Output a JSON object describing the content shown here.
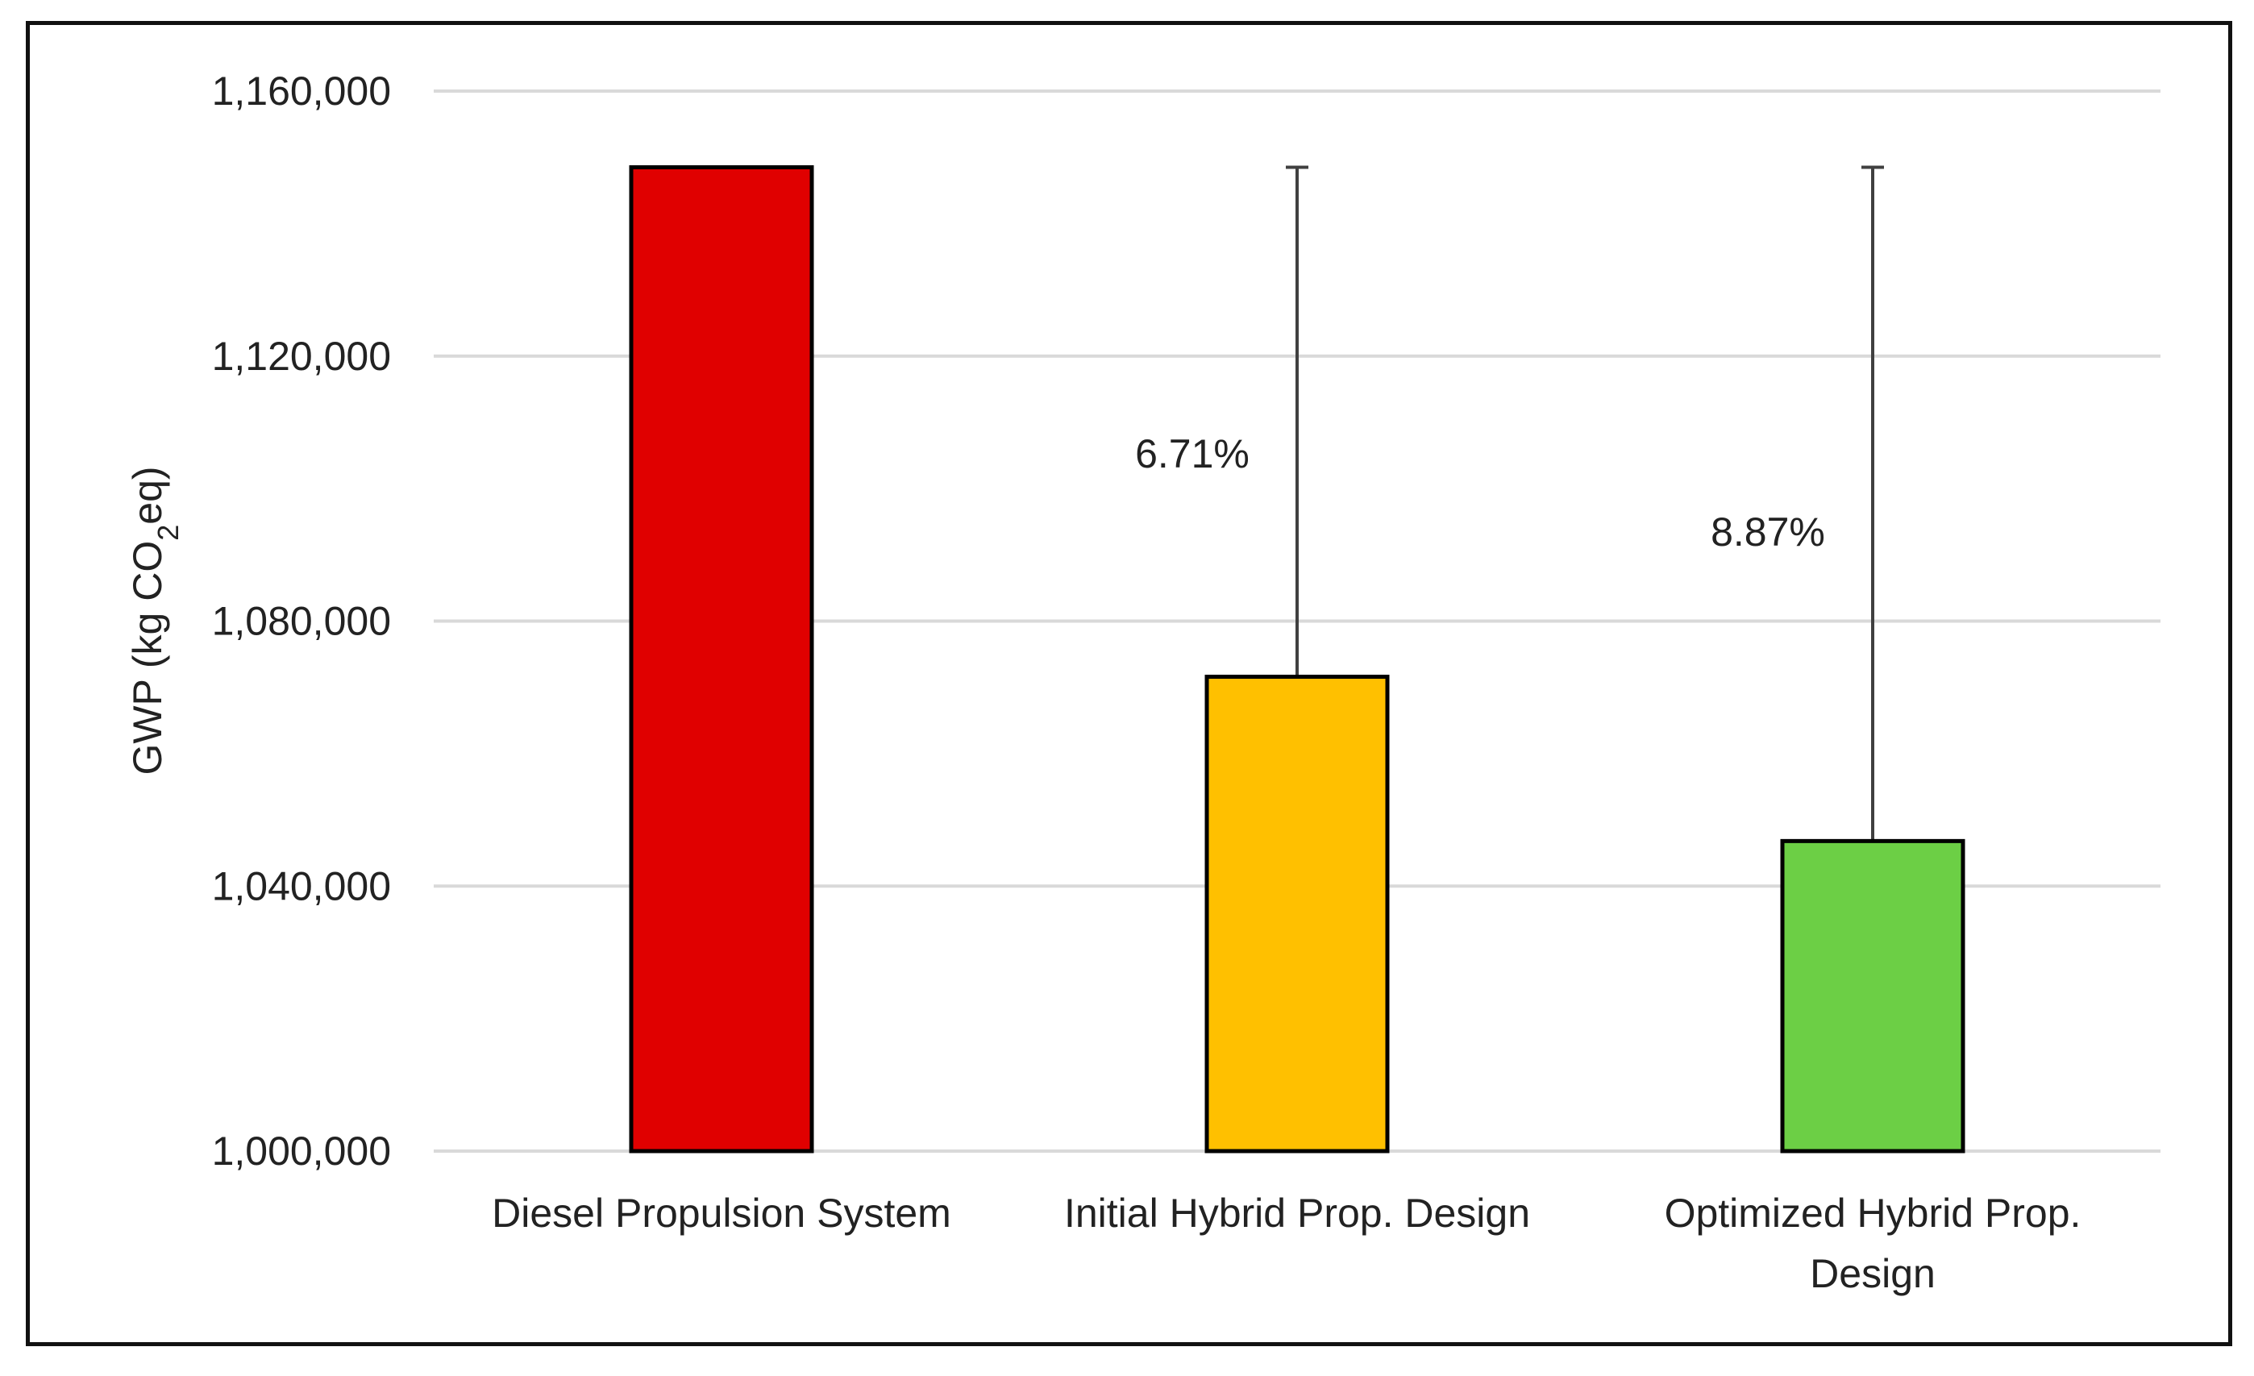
{
  "chart_data": {
    "type": "bar",
    "title": "",
    "xlabel": "",
    "ylabel": "GWP (kg CO2eq)",
    "ylabel_parts": {
      "pre": "GWP (kg CO",
      "sub": "2",
      "post": "eq)"
    },
    "ylim": [
      1000000,
      1160000
    ],
    "yticks": [
      1000000,
      1040000,
      1080000,
      1120000,
      1160000
    ],
    "ytick_labels": [
      "1,000,000",
      "1,040,000",
      "1,080,000",
      "1,120,000",
      "1,160,000"
    ],
    "grid": true,
    "categories": [
      [
        "Diesel Propulsion System"
      ],
      [
        "Initial Hybrid Prop. Design"
      ],
      [
        "Optimized Hybrid Prop.",
        "Design"
      ]
    ],
    "values": [
      1148500,
      1071600,
      1046800
    ],
    "error_bar_upper": [
      1148500,
      1148500,
      1148500
    ],
    "data_labels": [
      "",
      "6.71%",
      "8.87%"
    ],
    "colors": [
      "#e00000",
      "#ffc000",
      "#6ccf45"
    ]
  }
}
